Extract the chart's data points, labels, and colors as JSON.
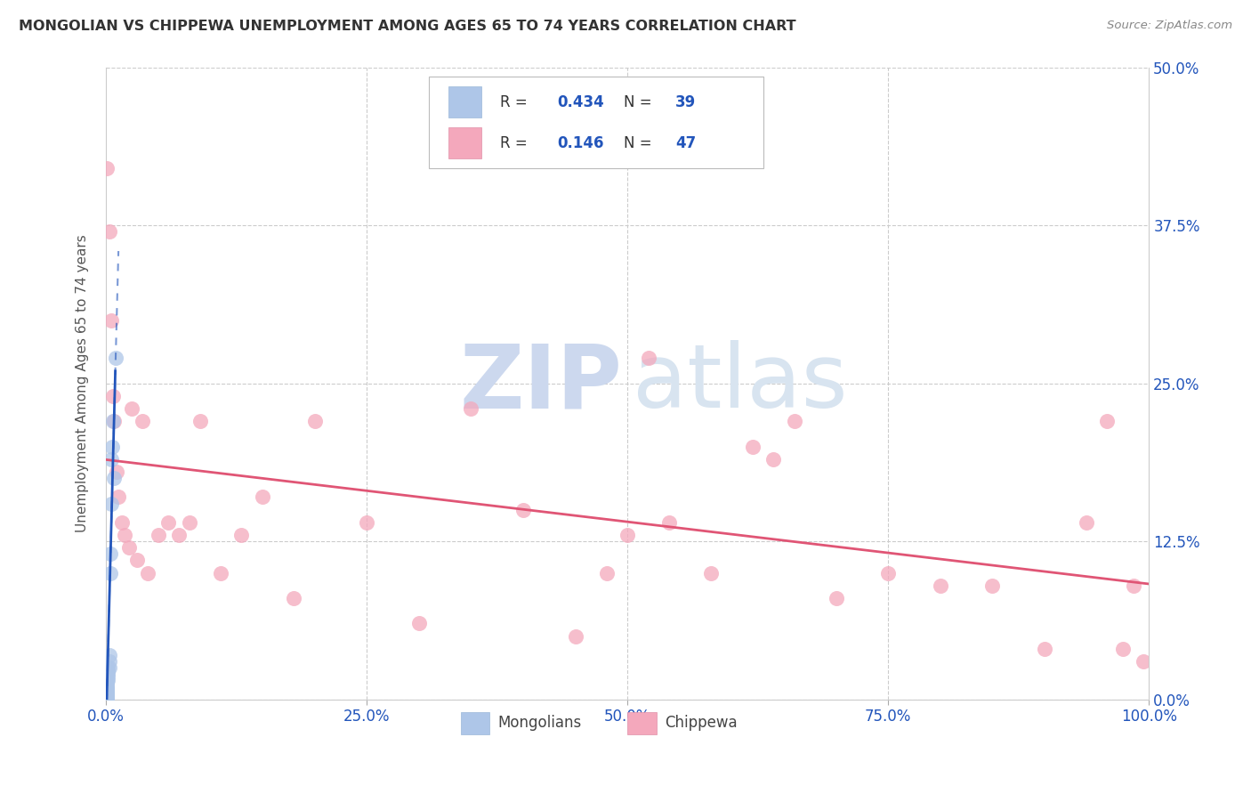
{
  "title": "MONGOLIAN VS CHIPPEWA UNEMPLOYMENT AMONG AGES 65 TO 74 YEARS CORRELATION CHART",
  "source": "Source: ZipAtlas.com",
  "ylabel": "Unemployment Among Ages 65 to 74 years",
  "mongolian_R": 0.434,
  "mongolian_N": 39,
  "chippewa_R": 0.146,
  "chippewa_N": 47,
  "mongolian_color": "#aec6e8",
  "chippewa_color": "#f4a8bc",
  "mongolian_line_color": "#2255bb",
  "chippewa_line_color": "#e05575",
  "mongolian_x": [
    0.0005,
    0.0005,
    0.0005,
    0.0005,
    0.0005,
    0.0007,
    0.0007,
    0.001,
    0.001,
    0.001,
    0.001,
    0.001,
    0.001,
    0.001,
    0.001,
    0.001,
    0.002,
    0.002,
    0.002,
    0.002,
    0.002,
    0.003,
    0.003,
    0.003,
    0.004,
    0.004,
    0.005,
    0.005,
    0.006,
    0.007,
    0.008,
    0.009,
    0.001,
    0.001,
    0.001,
    0.0005,
    0.0005,
    0.0008,
    0.001
  ],
  "mongolian_y": [
    0.0,
    0.0,
    0.002,
    0.003,
    0.005,
    0.005,
    0.006,
    0.006,
    0.007,
    0.008,
    0.009,
    0.01,
    0.012,
    0.013,
    0.015,
    0.015,
    0.015,
    0.018,
    0.02,
    0.022,
    0.025,
    0.025,
    0.03,
    0.035,
    0.1,
    0.115,
    0.155,
    0.19,
    0.2,
    0.22,
    0.175,
    0.27,
    0.0,
    0.0,
    0.001,
    0.0,
    0.002,
    0.003,
    0.005
  ],
  "chippewa_x": [
    0.001,
    0.003,
    0.005,
    0.007,
    0.008,
    0.01,
    0.012,
    0.015,
    0.018,
    0.022,
    0.025,
    0.03,
    0.035,
    0.04,
    0.05,
    0.06,
    0.07,
    0.08,
    0.09,
    0.11,
    0.13,
    0.15,
    0.18,
    0.2,
    0.25,
    0.3,
    0.35,
    0.4,
    0.45,
    0.48,
    0.5,
    0.54,
    0.58,
    0.62,
    0.66,
    0.7,
    0.75,
    0.8,
    0.85,
    0.9,
    0.94,
    0.96,
    0.975,
    0.985,
    0.995,
    0.52,
    0.64
  ],
  "chippewa_y": [
    0.42,
    0.37,
    0.3,
    0.24,
    0.22,
    0.18,
    0.16,
    0.14,
    0.13,
    0.12,
    0.23,
    0.11,
    0.22,
    0.1,
    0.13,
    0.14,
    0.13,
    0.14,
    0.22,
    0.1,
    0.13,
    0.16,
    0.08,
    0.22,
    0.14,
    0.06,
    0.23,
    0.15,
    0.05,
    0.1,
    0.13,
    0.14,
    0.1,
    0.2,
    0.22,
    0.08,
    0.1,
    0.09,
    0.09,
    0.04,
    0.14,
    0.22,
    0.04,
    0.09,
    0.03,
    0.27,
    0.19
  ],
  "xmin": 0.0,
  "xmax": 1.0,
  "ymin": 0.0,
  "ymax": 0.5,
  "xticks": [
    0.0,
    0.25,
    0.5,
    0.75,
    1.0
  ],
  "xticklabels": [
    "0.0%",
    "25.0%",
    "50.0%",
    "75.0%",
    "100.0%"
  ],
  "ytick_vals": [
    0.0,
    0.125,
    0.25,
    0.375,
    0.5
  ],
  "ytick_labels": [
    "0.0%",
    "12.5%",
    "25.0%",
    "37.5%",
    "50.0%"
  ],
  "watermark_zip_color": "#ccd8ee",
  "watermark_atlas_color": "#d8e4f0",
  "background_color": "#ffffff",
  "grid_color": "#cccccc",
  "legend_box_color": "#eeeeee"
}
